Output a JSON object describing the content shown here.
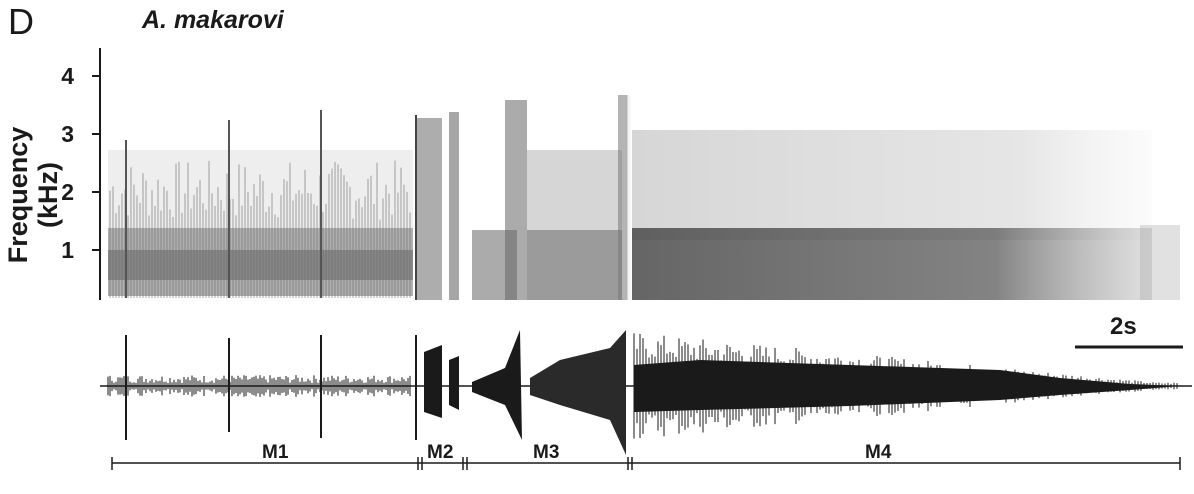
{
  "figure": {
    "panel_letter": "D",
    "species": "A. makarovi",
    "ylabel": "Frequency (kHz)",
    "yticks": [
      "4",
      "3",
      "2",
      "1"
    ],
    "scale_bar_label": "2s",
    "segments": [
      {
        "label": "M1"
      },
      {
        "label": "M2"
      },
      {
        "label": "M3"
      },
      {
        "label": "M4"
      }
    ]
  }
}
